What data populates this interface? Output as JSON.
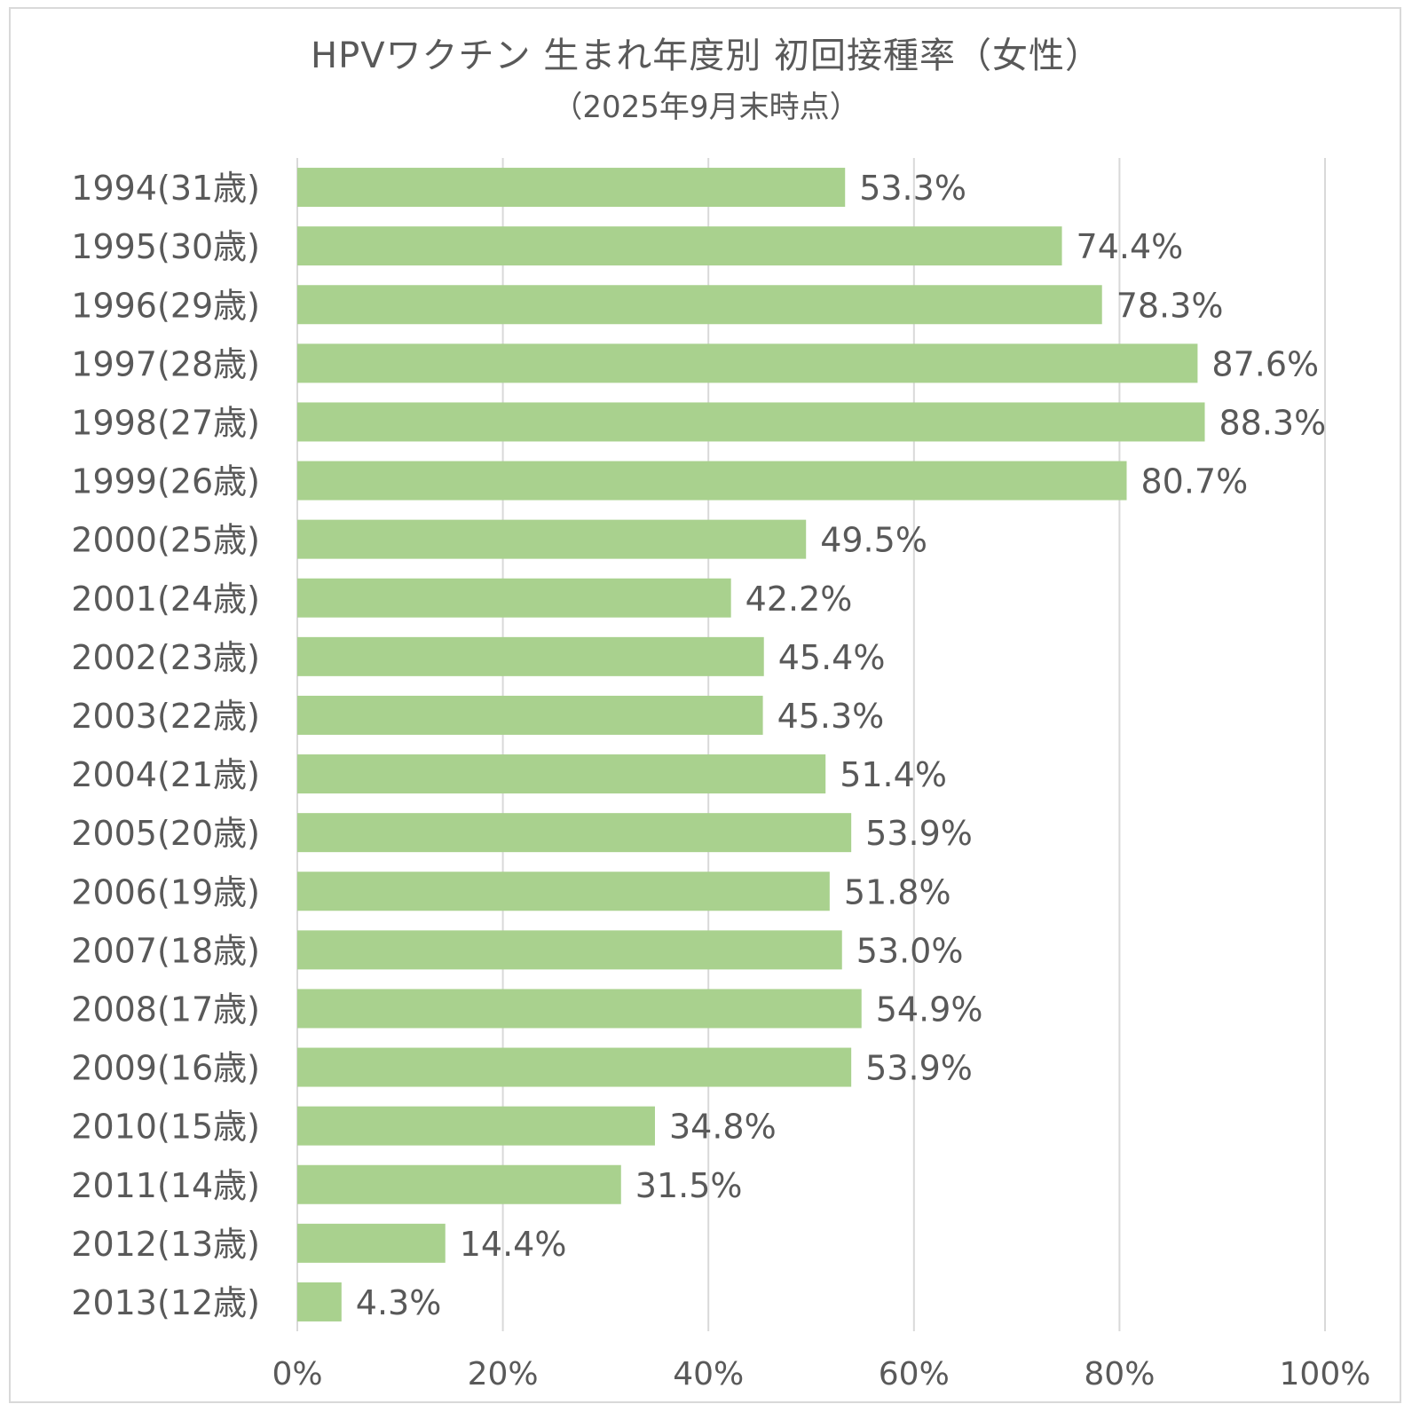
{
  "chart_data": {
    "type": "bar",
    "orientation": "horizontal",
    "title": "HPVワクチン 生まれ年度別 初回接種率（女性）",
    "subtitle": "（2025年9月末時点）",
    "categories": [
      "1994(31歳)",
      "1995(30歳)",
      "1996(29歳)",
      "1997(28歳)",
      "1998(27歳)",
      "1999(26歳)",
      "2000(25歳)",
      "2001(24歳)",
      "2002(23歳)",
      "2003(22歳)",
      "2004(21歳)",
      "2005(20歳)",
      "2006(19歳)",
      "2007(18歳)",
      "2008(17歳)",
      "2009(16歳)",
      "2010(15歳)",
      "2011(14歳)",
      "2012(13歳)",
      "2013(12歳)"
    ],
    "values": [
      53.3,
      74.4,
      78.3,
      87.6,
      88.3,
      80.7,
      49.5,
      42.2,
      45.4,
      45.3,
      51.4,
      53.9,
      51.8,
      53.0,
      54.9,
      53.9,
      34.8,
      31.5,
      14.4,
      4.3
    ],
    "value_labels": [
      "53.3%",
      "74.4%",
      "78.3%",
      "87.6%",
      "88.3%",
      "80.7%",
      "49.5%",
      "42.2%",
      "45.4%",
      "45.3%",
      "51.4%",
      "53.9%",
      "51.8%",
      "53.0%",
      "54.9%",
      "53.9%",
      "34.8%",
      "31.5%",
      "14.4%",
      "4.3%"
    ],
    "xlim": [
      0,
      100
    ],
    "xticks": [
      0,
      20,
      40,
      60,
      80,
      100
    ],
    "xtick_labels": [
      "0%",
      "20%",
      "40%",
      "60%",
      "80%",
      "100%"
    ],
    "xlabel": "",
    "ylabel": "",
    "grid": true,
    "legend": "none",
    "colors": {
      "bar": "#a9d18e",
      "grid": "#d9d9d9",
      "text": "#595959"
    }
  }
}
